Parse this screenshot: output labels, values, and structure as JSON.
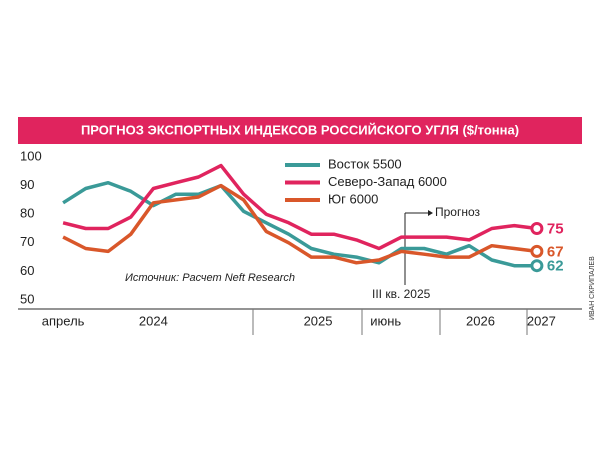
{
  "chart_data": {
    "type": "line",
    "title": "ПРОГНОЗ ЭКСПОРТНЫХ ИНДЕКСОВ РОССИЙСКОГО УГЛЯ ($/тонна)",
    "x": [
      0,
      1,
      2,
      3,
      4,
      5,
      6,
      7,
      8,
      9,
      10,
      11,
      12,
      13,
      14,
      15,
      16,
      17,
      18,
      19,
      20,
      21
    ],
    "xlim": [
      -2,
      23
    ],
    "xticks": [
      {
        "value": 0,
        "label": "апрель"
      },
      {
        "value": 4,
        "label": "2024"
      },
      {
        "value": 11.3,
        "label": "2025"
      },
      {
        "value": 14.3,
        "label": "июнь"
      },
      {
        "value": 18.5,
        "label": "2026"
      },
      {
        "value": 21.2,
        "label": "2027"
      }
    ],
    "ylim": [
      47,
      103
    ],
    "yticks": [
      50,
      60,
      70,
      80,
      90,
      100
    ],
    "series": [
      {
        "name": "Восток 5500",
        "color": "#3a9a98",
        "values": [
          84,
          89,
          91,
          88,
          83,
          87,
          87,
          90,
          81,
          77,
          73,
          68,
          66,
          65,
          63,
          68,
          68,
          66,
          69,
          64,
          62,
          62
        ]
      },
      {
        "name": "Северо-Запад  6000",
        "color": "#e0245e",
        "values": [
          77,
          75,
          75,
          79,
          89,
          91,
          93,
          97,
          87,
          80,
          77,
          73,
          73,
          71,
          68,
          72,
          72,
          72,
          71,
          75,
          76,
          75
        ]
      },
      {
        "name": "Юг  6000",
        "color": "#d9572a",
        "values": [
          72,
          68,
          67,
          73,
          84,
          85,
          86,
          90,
          85,
          74,
          70,
          65,
          65,
          63,
          64,
          67,
          66,
          65,
          65,
          69,
          68,
          67
        ]
      }
    ],
    "annotations": [
      "Источник: Расчет Neft Research",
      "Прогноз",
      "III кв. 2025",
      "ИВАН СКРИПАЛЕВ"
    ]
  }
}
